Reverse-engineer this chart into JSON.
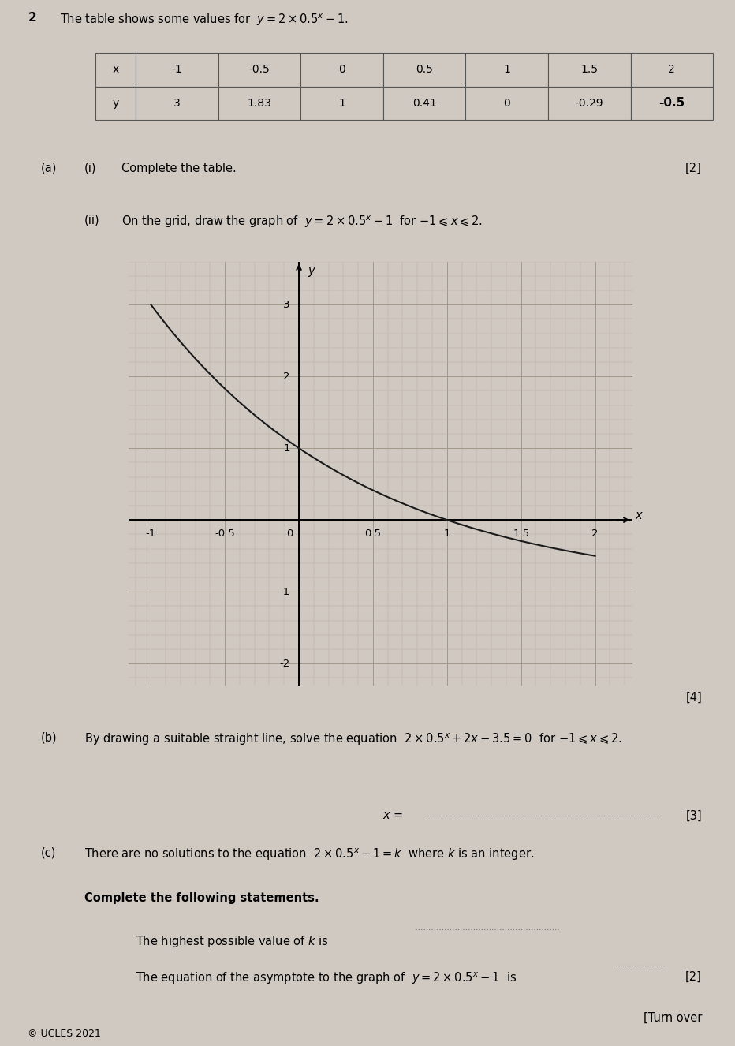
{
  "paper_bg": "#d0c9c1",
  "table_x_values": [
    "-1",
    "-0.5",
    "0",
    "0.5",
    "1",
    "1.5",
    "2"
  ],
  "table_y_values": [
    "3",
    "1.83",
    "1",
    "0.41",
    "0",
    "-0.29",
    "-0.5"
  ],
  "table_y_bold": [
    false,
    false,
    false,
    false,
    false,
    false,
    true
  ],
  "x_min": -1.15,
  "x_max": 2.25,
  "y_min": -2.3,
  "y_max": 3.6,
  "x_ticks": [
    -1.0,
    -0.5,
    0.0,
    0.5,
    1.0,
    1.5,
    2.0
  ],
  "y_ticks": [
    -2.0,
    -1.0,
    1.0,
    2.0,
    3.0
  ],
  "grid_major_color": "#a09888",
  "grid_minor_color": "#bab0a5",
  "curve_color": "#1a1a1a",
  "copyright": "© UCLES 2021"
}
